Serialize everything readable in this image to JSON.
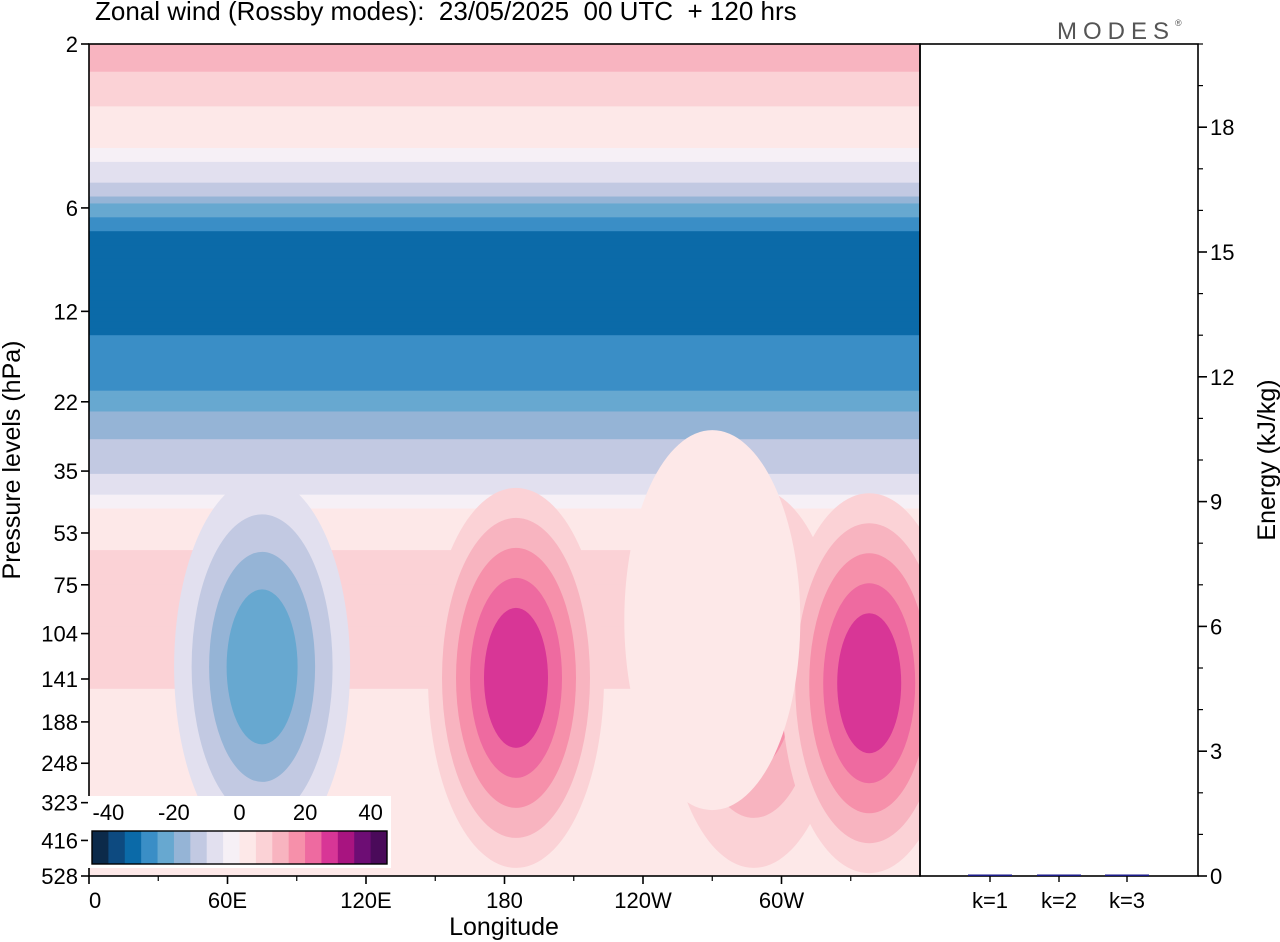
{
  "title": "Zonal wind (Rossby modes):  23/05/2025  00 UTC  + 120 hrs",
  "brand": "MODES",
  "brand_mark": "®",
  "chart_data": [
    {
      "type": "heatmap",
      "xlabel": "Longitude",
      "ylabel": "Pressure levels (hPa)",
      "x_ticks": [
        "0",
        "60E",
        "120E",
        "180",
        "120W",
        "60W"
      ],
      "y_ticks": [
        "2",
        "6",
        "12",
        "22",
        "35",
        "53",
        "75",
        "104",
        "141",
        "188",
        "248",
        "323",
        "416",
        "528"
      ],
      "y_scale": "log",
      "colorbar": {
        "tick_labels": [
          "-40",
          "-20",
          "0",
          "20",
          "40"
        ],
        "levels": [
          -40,
          -35,
          -30,
          -25,
          -20,
          -15,
          -10,
          -5,
          0,
          5,
          10,
          15,
          20,
          25,
          30,
          35,
          40
        ],
        "colors": [
          "#0c2a4a",
          "#0d4a80",
          "#0b6aa8",
          "#3a8ec6",
          "#67a8d0",
          "#95b4d6",
          "#c2c9e2",
          "#e2e0ef",
          "#f6f0f6",
          "#fde8e8",
          "#fbd2d6",
          "#f8b4c0",
          "#f690aa",
          "#ee6aa0",
          "#d83696",
          "#a81480",
          "#6d0d74",
          "#4a0a5a"
        ]
      },
      "field_bands": [
        {
          "pressure": 2,
          "value": 15
        },
        {
          "pressure": 3,
          "value": 5
        },
        {
          "pressure": 4,
          "value": 0
        },
        {
          "pressure": 5,
          "value": -10
        },
        {
          "pressure": 7,
          "value": -30
        },
        {
          "pressure": 10,
          "value": -35
        },
        {
          "pressure": 14,
          "value": -30
        },
        {
          "pressure": 20,
          "value": -25
        },
        {
          "pressure": 28,
          "value": -15
        },
        {
          "pressure": 36,
          "value": -10
        },
        {
          "pressure": 45,
          "value": 0
        },
        {
          "pressure": 60,
          "value": 5
        },
        {
          "pressure": 150,
          "value": 5
        },
        {
          "pressure": 400,
          "value": 0
        }
      ],
      "features": [
        {
          "lon": 75,
          "pressure": 130,
          "value": -20
        },
        {
          "lon": 185,
          "pressure": 140,
          "value": 25
        },
        {
          "lon": 288,
          "pressure": 140,
          "value": 15
        },
        {
          "lon": 338,
          "pressure": 145,
          "value": 25
        },
        {
          "lon": 270,
          "pressure": 95,
          "value": 0
        }
      ]
    },
    {
      "type": "bar",
      "ylabel": "Energy (kJ/kg)",
      "categories": [
        "k=1",
        "k=2",
        "k=3"
      ],
      "values": [
        0.02,
        0.02,
        0.02
      ],
      "ylim": [
        0,
        20
      ],
      "y_ticks": [
        0,
        3,
        6,
        9,
        12,
        15,
        18
      ]
    }
  ]
}
